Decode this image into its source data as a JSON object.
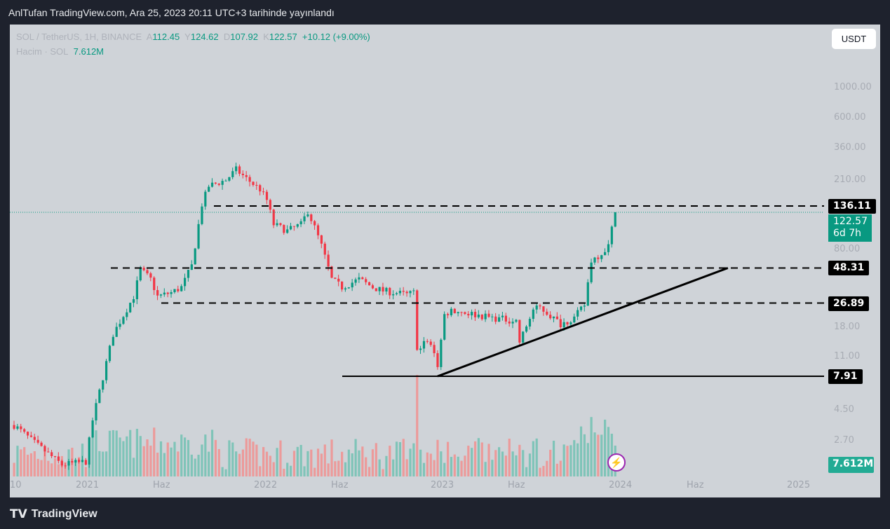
{
  "header": "AnlTufan TradingView.com, Ara 25, 2023 20:11 UTC+3 tarihinde yayınlandı",
  "legend": {
    "symbol": "SOL / TetherUS, 1H, BINANCE",
    "o_label": "A",
    "o": "112.45",
    "h_label": "Y",
    "h": "124.62",
    "l_label": "D",
    "l": "107.92",
    "c_label": "K",
    "c": "122.57",
    "change": "+10.12 (+9.00%)",
    "vol_label": "Hacim · SOL",
    "vol": "7.612M"
  },
  "currency_button": "USDT",
  "price_axis": [
    "1000.00",
    "600.00",
    "360.00",
    "210.00",
    "80.00",
    "18.00",
    "11.00",
    "4.50",
    "2.70"
  ],
  "time_axis": [
    "10",
    "2021",
    "Haz",
    "2022",
    "Haz",
    "2023",
    "Haz",
    "2024",
    "Haz",
    "2025"
  ],
  "levels": {
    "l1": "136.11",
    "l2": "48.31",
    "l3": "26.89",
    "l4": "7.91"
  },
  "current": {
    "price": "122.57",
    "countdown": "6d 7h"
  },
  "volume_tag": "7.612M",
  "footer": "TradingView",
  "colors": {
    "up": "#089981",
    "down": "#f23645",
    "bg": "#cfd3d8"
  },
  "chart_data": {
    "type": "candlestick",
    "scale": "log",
    "symbol": "SOL/USDT",
    "keyframes_week_price": [
      [
        0,
        3.5
      ],
      [
        6,
        2.6
      ],
      [
        14,
        1.8
      ],
      [
        21,
        1.9
      ],
      [
        23,
        3.8
      ],
      [
        29,
        16
      ],
      [
        35,
        30
      ],
      [
        37,
        47
      ],
      [
        40,
        40
      ],
      [
        42,
        30
      ],
      [
        46,
        32
      ],
      [
        49,
        35
      ],
      [
        52,
        50
      ],
      [
        55,
        140
      ],
      [
        57,
        190
      ],
      [
        62,
        210
      ],
      [
        65,
        250
      ],
      [
        68,
        215
      ],
      [
        72,
        180
      ],
      [
        74,
        150
      ],
      [
        76,
        100
      ],
      [
        80,
        90
      ],
      [
        84,
        100
      ],
      [
        86,
        125
      ],
      [
        88,
        95
      ],
      [
        90,
        70
      ],
      [
        93,
        40
      ],
      [
        96,
        35
      ],
      [
        101,
        40
      ],
      [
        105,
        35
      ],
      [
        108,
        33
      ],
      [
        115,
        31
      ],
      [
        117,
        32
      ],
      [
        118,
        13
      ],
      [
        121,
        14
      ],
      [
        123,
        12
      ],
      [
        124,
        9.5
      ],
      [
        126,
        22
      ],
      [
        128,
        24
      ],
      [
        140,
        21
      ],
      [
        147,
        20
      ],
      [
        148,
        14
      ],
      [
        152,
        24
      ],
      [
        154,
        25
      ],
      [
        160,
        19
      ],
      [
        164,
        21
      ],
      [
        167,
        26
      ],
      [
        169,
        55
      ],
      [
        172,
        62
      ],
      [
        174,
        70
      ],
      [
        176,
        122.57
      ]
    ],
    "horizontal_levels": [
      136.11,
      48.31,
      26.89,
      7.91
    ],
    "trendline": [
      [
        124,
        7.91
      ],
      [
        209,
        48.31
      ]
    ]
  }
}
